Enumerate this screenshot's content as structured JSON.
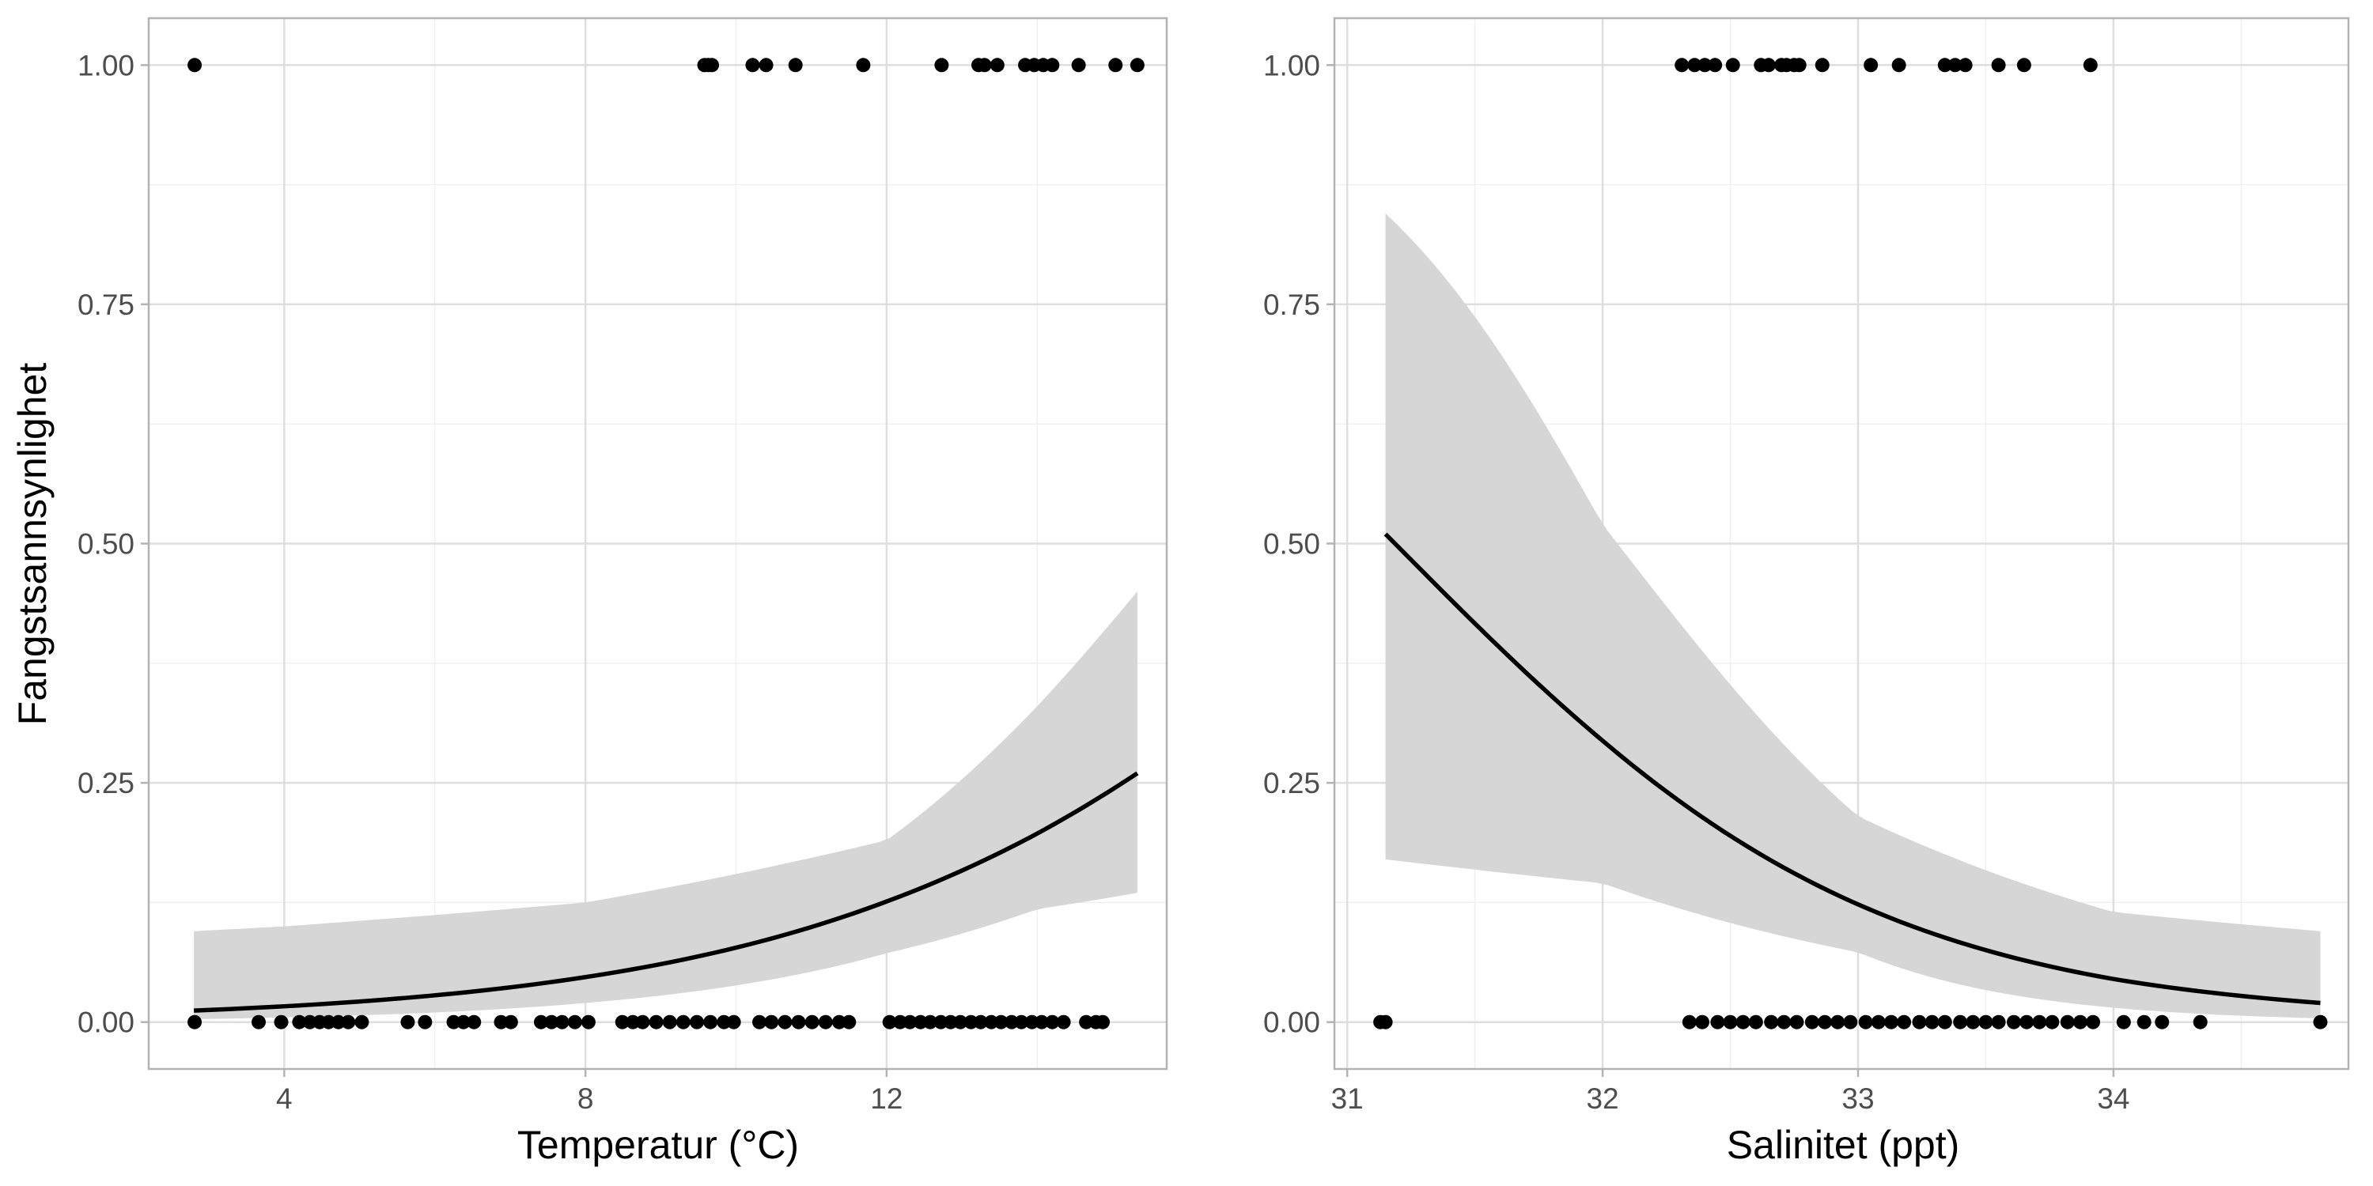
{
  "chart_data": [
    {
      "type": "scatter",
      "xlabel": "Temperatur (°C)",
      "ylabel": "Fangstsannsynlighet",
      "xlim": [
        2.2,
        15.72
      ],
      "ylim": [
        -0.049,
        1.049
      ],
      "x_ticks": [
        4,
        8,
        12
      ],
      "x_tick_labels": [
        "4",
        "8",
        "12"
      ],
      "y_ticks": [
        0,
        0.25,
        0.5,
        0.75,
        1
      ],
      "y_tick_labels": [
        "0.00",
        "0.25",
        "0.50",
        "0.75",
        "1.00"
      ],
      "grid": true,
      "points_y1": [
        2.81,
        9.58,
        9.63,
        9.68,
        10.22,
        10.4,
        10.79,
        11.69,
        12.73,
        13.22,
        13.3,
        13.47,
        13.84,
        13.96,
        14.08,
        14.2,
        14.55,
        15.04,
        15.33
      ],
      "points_y0": [
        2.81,
        3.66,
        3.96,
        4.2,
        4.34,
        4.47,
        4.59,
        4.72,
        4.85,
        5.03,
        5.64,
        5.87,
        6.25,
        6.38,
        6.52,
        6.88,
        7.01,
        7.41,
        7.55,
        7.69,
        7.86,
        8.04,
        8.49,
        8.63,
        8.76,
        8.94,
        9.12,
        9.3,
        9.48,
        9.66,
        9.84,
        9.97,
        10.31,
        10.47,
        10.65,
        10.83,
        11.01,
        11.19,
        11.37,
        11.5,
        12.04,
        12.18,
        12.31,
        12.45,
        12.58,
        12.72,
        12.85,
        12.98,
        13.12,
        13.25,
        13.39,
        13.52,
        13.66,
        13.79,
        13.93,
        14.06,
        14.2,
        14.35,
        14.65,
        14.78,
        14.87
      ],
      "fit": {
        "x": [
          2.8,
          4,
          8,
          12,
          14,
          15.33
        ],
        "y": [
          0.012,
          0.0165,
          0.047,
          0.126,
          0.197,
          0.26
        ],
        "lower": [
          0.003,
          0.005,
          0.02,
          0.072,
          0.118,
          0.135
        ],
        "upper": [
          0.095,
          0.1,
          0.125,
          0.19,
          0.33,
          0.45
        ]
      },
      "colors": {
        "points": "#000000",
        "line": "#000000",
        "ribbon": "#d6d6d6"
      }
    },
    {
      "type": "scatter",
      "xlabel": "Salinitet (ppt)",
      "ylabel": "",
      "xlim": [
        30.95,
        34.92
      ],
      "ylim": [
        -0.049,
        1.049
      ],
      "x_ticks": [
        31,
        32,
        33,
        34
      ],
      "x_tick_labels": [
        "31",
        "32",
        "33",
        "34"
      ],
      "y_ticks": [
        0,
        0.25,
        0.5,
        0.75,
        1
      ],
      "y_tick_labels": [
        "0.00",
        "0.25",
        "0.50",
        "0.75",
        "1.00"
      ],
      "grid": true,
      "points_y1": [
        32.31,
        32.36,
        32.4,
        32.44,
        32.51,
        32.62,
        32.65,
        32.7,
        32.72,
        32.75,
        32.77,
        32.86,
        33.05,
        33.16,
        33.34,
        33.38,
        33.42,
        33.55,
        33.65,
        33.91
      ],
      "points_y0": [
        31.13,
        31.15,
        32.34,
        32.39,
        32.45,
        32.5,
        32.55,
        32.6,
        32.66,
        32.71,
        32.76,
        32.82,
        32.87,
        32.92,
        32.97,
        33.03,
        33.08,
        33.13,
        33.18,
        33.24,
        33.29,
        33.34,
        33.4,
        33.45,
        33.5,
        33.55,
        33.61,
        33.66,
        33.71,
        33.76,
        33.82,
        33.87,
        33.92,
        34.04,
        34.12,
        34.19,
        34.34,
        34.81
      ],
      "fit": {
        "x": [
          31.15,
          32,
          33,
          34,
          34.81
        ],
        "y": [
          0.51,
          0.294,
          0.123,
          0.045,
          0.02
        ],
        "lower": [
          0.17,
          0.145,
          0.073,
          0.015,
          0.004
        ],
        "upper": [
          0.845,
          0.52,
          0.215,
          0.115,
          0.095
        ]
      },
      "colors": {
        "points": "#000000",
        "line": "#000000",
        "ribbon": "#d6d6d6"
      }
    }
  ]
}
